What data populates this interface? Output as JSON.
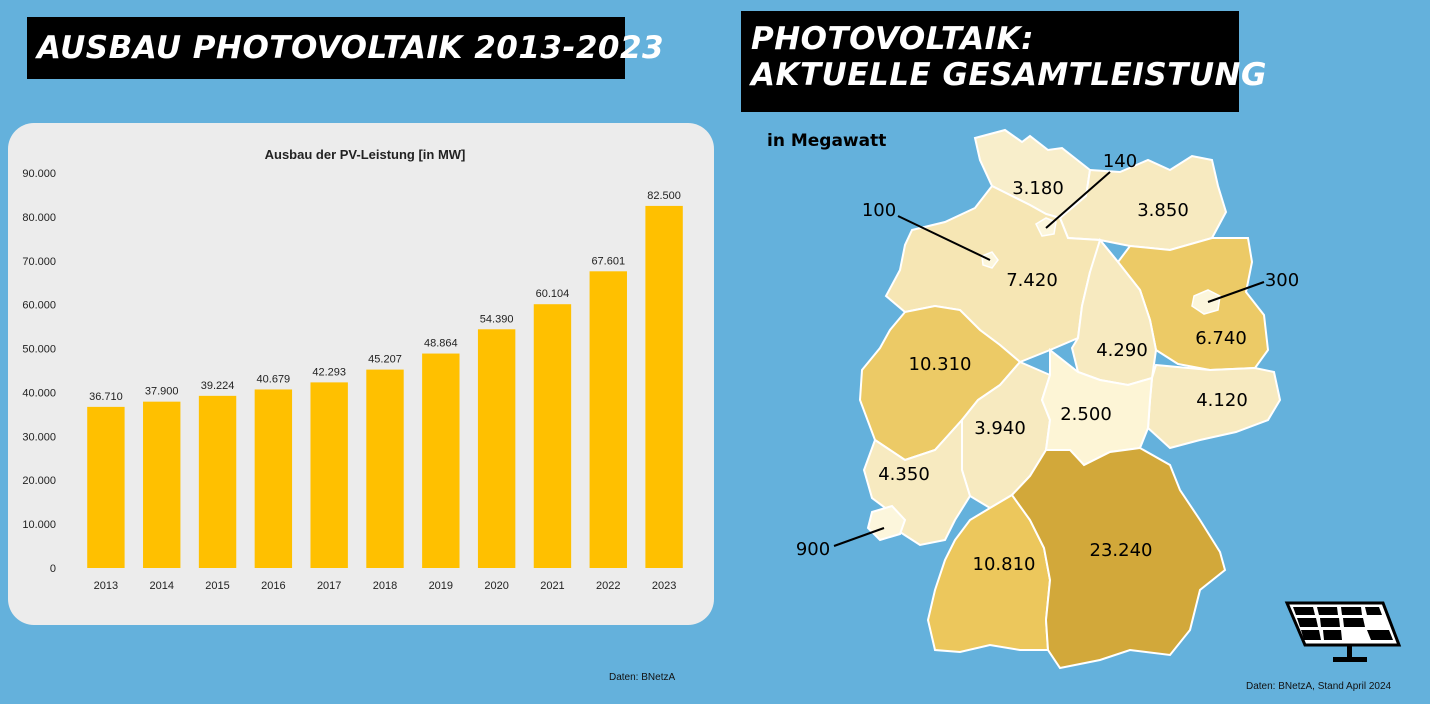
{
  "left": {
    "title": "AUSBAU PHOTOVOLTAIK 2013-2023",
    "source": "Daten: BNetzA"
  },
  "right": {
    "title_line1": "PHOTOVOLTAIK:",
    "title_line2": "AKTUELLE GESAMTLEISTUNG",
    "unit": "in Megawatt",
    "source": "Daten: BNetzA, Stand April 2024",
    "regions": [
      {
        "value": "3.180",
        "fill": "#f8eecb"
      },
      {
        "value": "140",
        "fill": "#fcf6dc"
      },
      {
        "value": "3.850",
        "fill": "#f7eac0"
      },
      {
        "value": "100",
        "fill": "#fcf6dc"
      },
      {
        "value": "7.420",
        "fill": "#f6e6b4"
      },
      {
        "value": "300",
        "fill": "#fcf6dc"
      },
      {
        "value": "6.740",
        "fill": "#ecca66"
      },
      {
        "value": "4.290",
        "fill": "#f7eac0"
      },
      {
        "value": "10.310",
        "fill": "#ecca66"
      },
      {
        "value": "4.120",
        "fill": "#f7eac0"
      },
      {
        "value": "3.940",
        "fill": "#f7eac0"
      },
      {
        "value": "2.500",
        "fill": "#fdf5d6"
      },
      {
        "value": "4.350",
        "fill": "#f7eac0"
      },
      {
        "value": "900",
        "fill": "#fcf6dc"
      },
      {
        "value": "10.810",
        "fill": "#ecc75c"
      },
      {
        "value": "23.240",
        "fill": "#d2a83a"
      }
    ],
    "icon": "solar-panel-icon"
  },
  "chart_data": {
    "type": "bar",
    "title": "Ausbau der PV-Leistung [in MW]",
    "categories": [
      "2013",
      "2014",
      "2015",
      "2016",
      "2017",
      "2018",
      "2019",
      "2020",
      "2021",
      "2022",
      "2023"
    ],
    "values": [
      36710,
      37900,
      39224,
      40679,
      42293,
      45207,
      48864,
      54390,
      60104,
      67601,
      82500
    ],
    "value_labels": [
      "36.710",
      "37.900",
      "39.224",
      "40.679",
      "42.293",
      "45.207",
      "48.864",
      "54.390",
      "60.104",
      "67.601",
      "82.500"
    ],
    "yticks": [
      "0",
      "10.000",
      "20.000",
      "30.000",
      "40.000",
      "50.000",
      "60.000",
      "70.000",
      "80.000",
      "90.000"
    ],
    "ylim": [
      0,
      90000
    ],
    "bar_color": "#ffc000",
    "grid": false,
    "legend": "none"
  }
}
